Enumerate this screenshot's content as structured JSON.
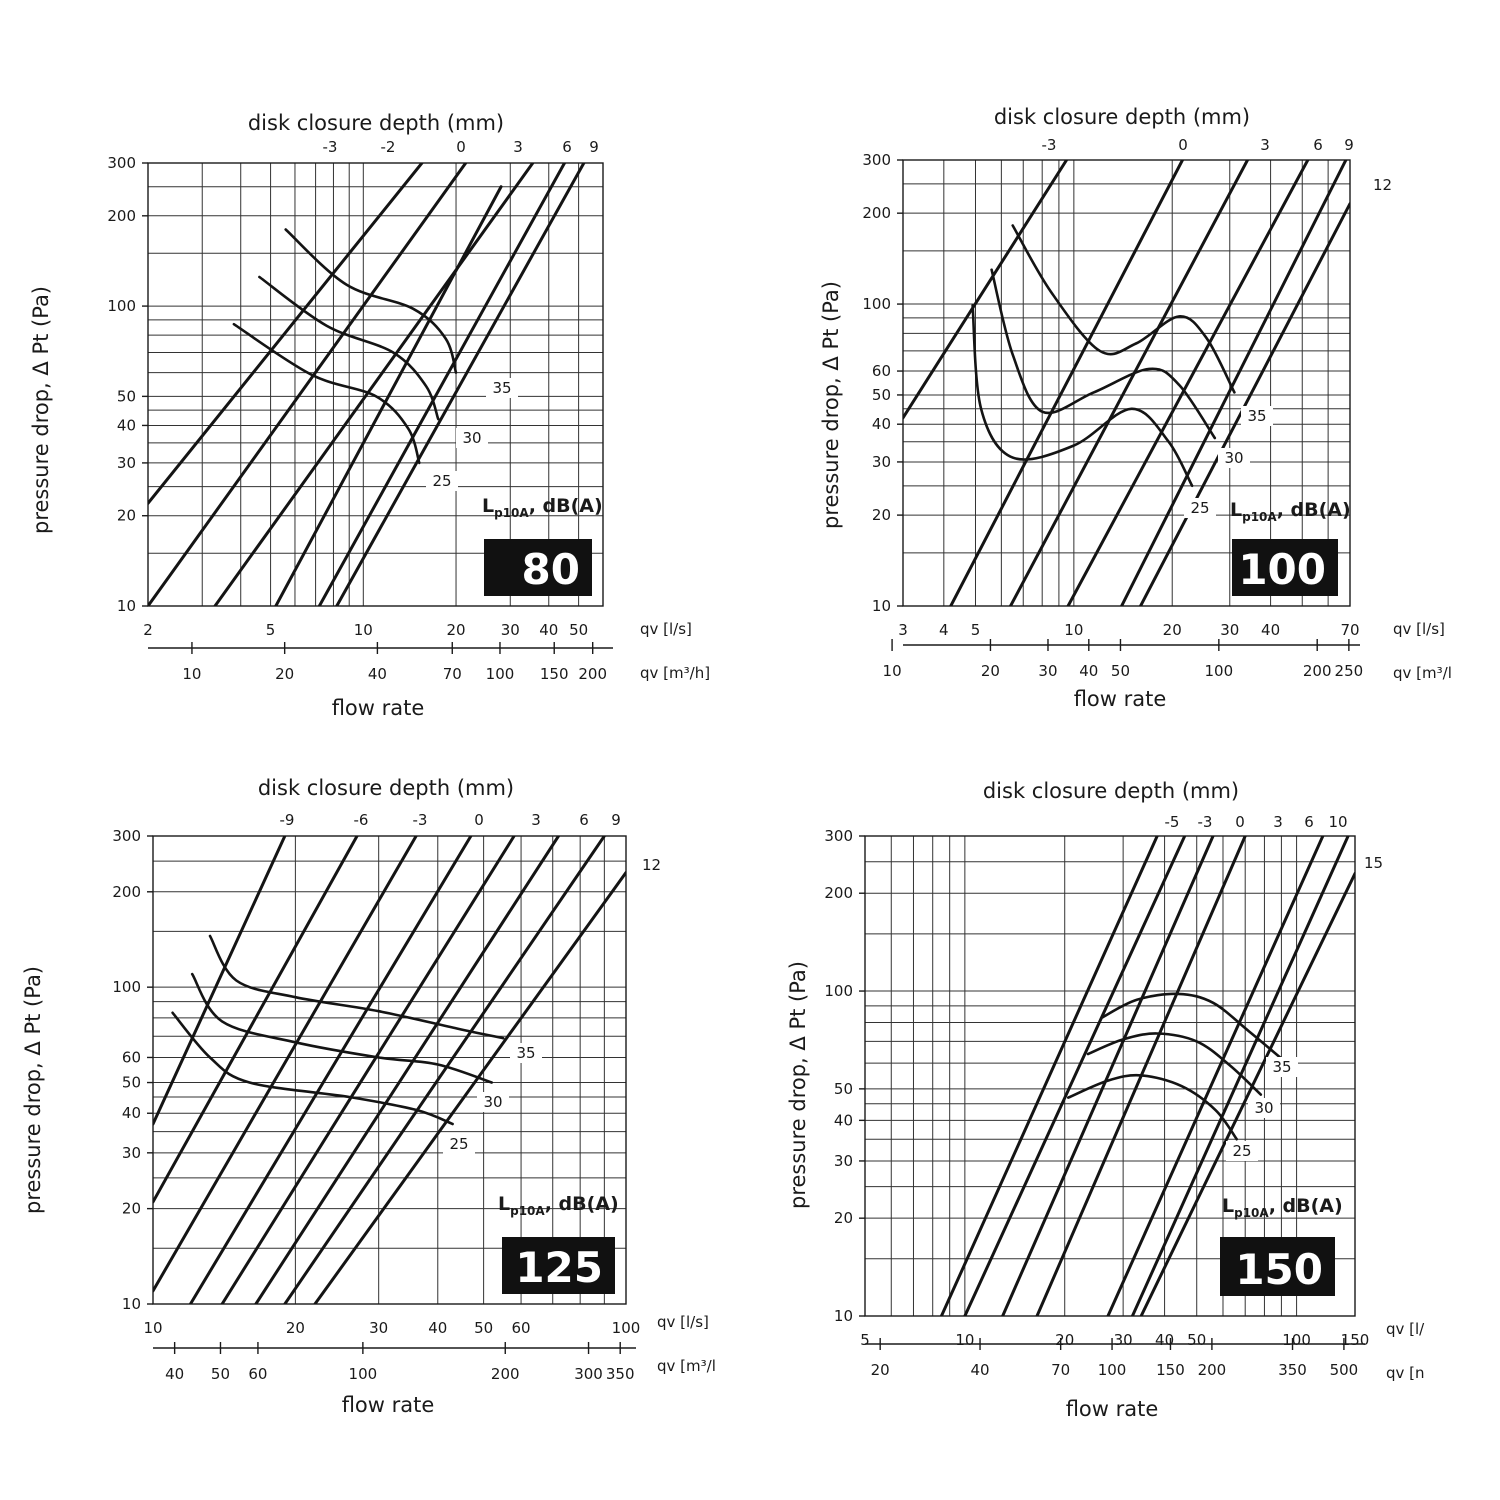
{
  "chart_data": [
    {
      "type": "line",
      "badge": "80",
      "top_axis_title": "disk closure depth (mm)",
      "ylabel": "pressure drop, Δ Pt (Pa)",
      "xlabel": "flow rate",
      "x_unit": "qv [l/s]",
      "x2_unit": "qv [m³/h]",
      "noise_label_main": "L",
      "noise_label_sub": "p10A",
      "noise_label_tail": ", dB(A)",
      "xlim": [
        2,
        60
      ],
      "ylim": [
        10,
        300
      ],
      "y_ticks": [
        "10",
        "20",
        "30",
        "40",
        "50",
        "100",
        "200",
        "300"
      ],
      "x_ticks": [
        "2",
        "5",
        "10",
        "20",
        "30",
        "40",
        "50"
      ],
      "x2_ticks": [
        "10",
        "20",
        "40",
        "70",
        "100",
        "150",
        "200"
      ],
      "depth_lines": [
        {
          "name": "-3",
          "p1": [
            2,
            22
          ],
          "p2": [
            15.5,
            300
          ]
        },
        {
          "name": "-2",
          "p1": [
            2,
            10
          ],
          "p2": [
            21.5,
            300
          ]
        },
        {
          "name": "0",
          "p1": [
            3.3,
            10
          ],
          "p2": [
            35.5,
            300
          ]
        },
        {
          "name": "3",
          "p1": [
            5.2,
            10
          ],
          "p2": [
            28,
            250
          ]
        },
        {
          "name": "6",
          "p1": [
            7.2,
            10
          ],
          "p2": [
            45,
            300
          ]
        },
        {
          "name": "9",
          "p1": [
            8.2,
            10
          ],
          "p2": [
            52,
            300
          ]
        }
      ],
      "noise_curves": [
        {
          "name": "35",
          "points": [
            [
              5.6,
              180
            ],
            [
              8.8,
              118
            ],
            [
              14.5,
              98
            ],
            [
              18.5,
              78
            ],
            [
              20,
              60
            ]
          ]
        },
        {
          "name": "30",
          "points": [
            [
              4.6,
              125
            ],
            [
              7.6,
              86
            ],
            [
              12.5,
              70
            ],
            [
              16,
              54
            ],
            [
              17.5,
              42
            ]
          ]
        },
        {
          "name": "25",
          "points": [
            [
              3.8,
              87
            ],
            [
              6.8,
              59
            ],
            [
              11,
              50
            ],
            [
              14,
              39
            ],
            [
              15.2,
              30
            ]
          ]
        }
      ],
      "noise_values": [
        "35",
        "30",
        "25"
      ]
    },
    {
      "type": "line",
      "badge": "100",
      "top_axis_title": "disk closure depth (mm)",
      "ylabel": "pressure drop, Δ Pt (Pa)",
      "xlabel": "flow rate",
      "x_unit": "qv [l/s]",
      "x2_unit": "qv [m³/l",
      "noise_label_main": "L",
      "noise_label_sub": "p10A",
      "noise_label_tail": ", dB(A)",
      "xlim": [
        3,
        70
      ],
      "ylim": [
        10,
        300
      ],
      "y_ticks": [
        "10",
        "20",
        "30",
        "40",
        "50",
        "60",
        "100",
        "200",
        "300"
      ],
      "x_ticks": [
        "3",
        "4",
        "5",
        "10",
        "20",
        "30",
        "40",
        "70"
      ],
      "x2_ticks": [
        "10",
        "20",
        "30",
        "40",
        "50",
        "100",
        "200",
        "250"
      ],
      "depth_lines": [
        {
          "name": "-3",
          "p1": [
            3,
            42
          ],
          "p2": [
            9.5,
            300
          ]
        },
        {
          "name": "0",
          "p1": [
            4.2,
            10
          ],
          "p2": [
            21.5,
            300
          ]
        },
        {
          "name": "3",
          "p1": [
            6.4,
            10
          ],
          "p2": [
            34,
            300
          ]
        },
        {
          "name": "6",
          "p1": [
            9.6,
            10
          ],
          "p2": [
            52,
            300
          ]
        },
        {
          "name": "9",
          "p1": [
            14,
            10
          ],
          "p2": [
            68,
            300
          ]
        },
        {
          "name": "12",
          "p1": [
            16,
            10
          ],
          "p2": [
            70,
            215
          ]
        }
      ],
      "noise_curves": [
        {
          "name": "35",
          "points": [
            [
              6.5,
              182
            ],
            [
              8.5,
              110
            ],
            [
              12,
              70
            ],
            [
              15.5,
              74
            ],
            [
              21,
              91
            ],
            [
              25.5,
              77
            ],
            [
              31,
              51
            ]
          ]
        },
        {
          "name": "30",
          "points": [
            [
              5.6,
              130
            ],
            [
              6.5,
              68
            ],
            [
              8,
              44
            ],
            [
              11.5,
              51
            ],
            [
              17,
              61
            ],
            [
              21,
              54
            ],
            [
              27,
              36
            ]
          ]
        },
        {
          "name": "25",
          "points": [
            [
              4.9,
              99
            ],
            [
              5.2,
              45
            ],
            [
              6.5,
              31
            ],
            [
              10,
              34
            ],
            [
              15,
              45
            ],
            [
              19.5,
              35
            ],
            [
              23,
              25
            ]
          ]
        }
      ],
      "noise_values": [
        "35",
        "30",
        "25"
      ]
    },
    {
      "type": "line",
      "badge": "125",
      "top_axis_title": "disk closure depth (mm)",
      "ylabel": "pressure drop, Δ Pt (Pa)",
      "xlabel": "flow rate",
      "x_unit": "qv [l/s]",
      "x2_unit": "qv [m³/l",
      "noise_label_main": "L",
      "noise_label_sub": "p10A",
      "noise_label_tail": ", dB(A)",
      "xlim": [
        10,
        100
      ],
      "ylim": [
        10,
        300
      ],
      "y_ticks": [
        "10",
        "20",
        "30",
        "40",
        "50",
        "60",
        "100",
        "200",
        "300"
      ],
      "x_ticks": [
        "10",
        "20",
        "30",
        "40",
        "50",
        "60",
        "100"
      ],
      "x2_ticks": [
        "40",
        "50",
        "60",
        "100",
        "200",
        "300",
        "350"
      ],
      "depth_lines": [
        {
          "name": "-9",
          "p1": [
            10,
            37
          ],
          "p2": [
            19,
            300
          ]
        },
        {
          "name": "-6",
          "p1": [
            10,
            21
          ],
          "p2": [
            27,
            300
          ]
        },
        {
          "name": "-3",
          "p1": [
            10,
            11
          ],
          "p2": [
            36,
            300
          ]
        },
        {
          "name": "0",
          "p1": [
            12,
            10
          ],
          "p2": [
            47,
            300
          ]
        },
        {
          "name": "3",
          "p1": [
            14,
            10
          ],
          "p2": [
            58,
            300
          ]
        },
        {
          "name": "6",
          "p1": [
            16.5,
            10
          ],
          "p2": [
            72,
            300
          ]
        },
        {
          "name": "9",
          "p1": [
            19,
            10
          ],
          "p2": [
            90,
            300
          ]
        },
        {
          "name": "12",
          "p1": [
            22,
            10
          ],
          "p2": [
            100,
            230
          ]
        }
      ],
      "noise_curves": [
        {
          "name": "35",
          "points": [
            [
              13.2,
              145
            ],
            [
              15,
              105
            ],
            [
              20,
              93
            ],
            [
              30,
              84
            ],
            [
              44,
              74
            ],
            [
              55,
              69
            ]
          ]
        },
        {
          "name": "30",
          "points": [
            [
              12.1,
              110
            ],
            [
              14,
              78
            ],
            [
              20,
              67
            ],
            [
              30,
              60
            ],
            [
              40,
              57
            ],
            [
              52,
              50
            ]
          ]
        },
        {
          "name": "25",
          "points": [
            [
              11,
              83
            ],
            [
              13.2,
              60
            ],
            [
              16,
              50
            ],
            [
              26,
              45
            ],
            [
              36,
              41
            ],
            [
              43,
              37
            ]
          ]
        }
      ],
      "noise_values": [
        "35",
        "30",
        "25"
      ]
    },
    {
      "type": "line",
      "badge": "150",
      "top_axis_title": "disk closure depth (mm)",
      "ylabel": "pressure drop, Δ Pt (Pa)",
      "xlabel": "flow rate",
      "x_unit": "qv [l/",
      "x2_unit": "qv [n",
      "noise_label_main": "L",
      "noise_label_sub": "p10A",
      "noise_label_tail": ", dB(A)",
      "xlim": [
        5,
        150
      ],
      "ylim": [
        10,
        300
      ],
      "y_ticks": [
        "10",
        "20",
        "30",
        "40",
        "50",
        "100",
        "200",
        "300"
      ],
      "x_ticks": [
        "5",
        "10",
        "20",
        "30",
        "40",
        "50",
        "100",
        "150"
      ],
      "x2_ticks": [
        "20",
        "40",
        "70",
        "100",
        "150",
        "200",
        "350",
        "500"
      ],
      "depth_lines": [
        {
          "name": "-5",
          "p1": [
            8.5,
            10
          ],
          "p2": [
            38,
            300
          ]
        },
        {
          "name": "-3",
          "p1": [
            10,
            10
          ],
          "p2": [
            46,
            300
          ]
        },
        {
          "name": "0",
          "p1": [
            13,
            10
          ],
          "p2": [
            56,
            300
          ]
        },
        {
          "name": "3",
          "p1": [
            16.5,
            10
          ],
          "p2": [
            70,
            300
          ]
        },
        {
          "name": "6",
          "p1": [
            27,
            10
          ],
          "p2": [
            120,
            300
          ]
        },
        {
          "name": "10",
          "p1": [
            32,
            10
          ],
          "p2": [
            143,
            300
          ]
        },
        {
          "name": "15",
          "p1": [
            34,
            10
          ],
          "p2": [
            150,
            230
          ]
        }
      ],
      "noise_curves": [
        {
          "name": "35",
          "points": [
            [
              26,
              83
            ],
            [
              33,
              94
            ],
            [
              44,
              98
            ],
            [
              56,
              92
            ],
            [
              72,
              75
            ],
            [
              90,
              62
            ]
          ]
        },
        {
          "name": "30",
          "points": [
            [
              23.5,
              64
            ],
            [
              30,
              71
            ],
            [
              38,
              74
            ],
            [
              50,
              70
            ],
            [
              63,
              59
            ],
            [
              78,
              48
            ]
          ]
        },
        {
          "name": "25",
          "points": [
            [
              20.5,
              47
            ],
            [
              27,
              53
            ],
            [
              34,
              55
            ],
            [
              45,
              51
            ],
            [
              57,
              43
            ],
            [
              66,
              35
            ]
          ]
        }
      ],
      "noise_values": [
        "35",
        "30",
        "25"
      ]
    }
  ]
}
